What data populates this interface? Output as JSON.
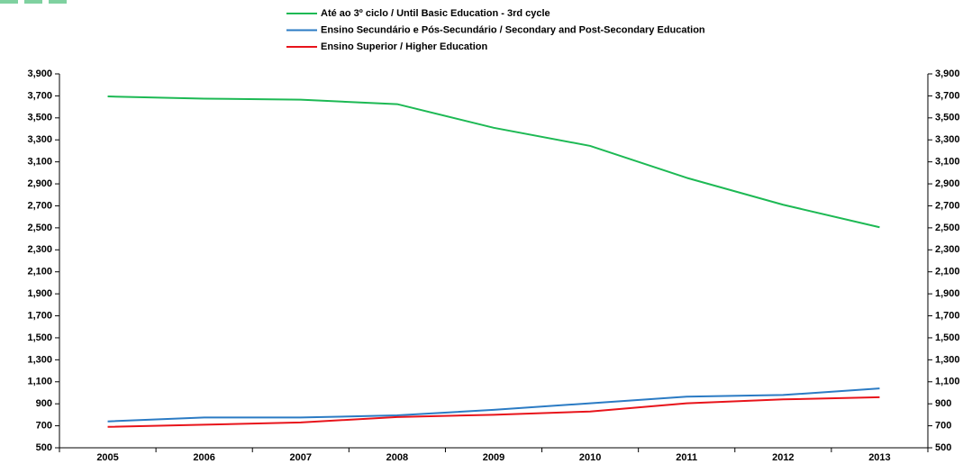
{
  "chart_data": {
    "type": "line",
    "categories": [
      "2005",
      "2006",
      "2007",
      "2008",
      "2009",
      "2010",
      "2011",
      "2012",
      "2013"
    ],
    "series": [
      {
        "name": "Até ao 3º ciclo / Until Basic Education - 3rd cycle",
        "color": "#1db954",
        "values": [
          3695,
          3675,
          3665,
          3625,
          3410,
          3245,
          2955,
          2710,
          2505
        ]
      },
      {
        "name": "Ensino Secundário e Pós-Secundário / Secondary and Post-Secondary Education",
        "color": "#2b7bc4",
        "values": [
          740,
          775,
          775,
          795,
          845,
          905,
          965,
          980,
          1040
        ]
      },
      {
        "name": "Ensino Superior / Higher Education",
        "color": "#e8141b",
        "values": [
          690,
          710,
          730,
          780,
          800,
          830,
          905,
          940,
          960
        ]
      }
    ],
    "ylim": [
      500,
      3900
    ],
    "yticks": [
      500,
      700,
      900,
      {
        "value": 1100,
        "label": "1,100"
      },
      {
        "value": 1300,
        "label": "1,300"
      },
      {
        "value": 1500,
        "label": "1,500"
      },
      {
        "value": 1700,
        "label": "1,700"
      },
      {
        "value": 1900,
        "label": "1,900"
      },
      {
        "value": 2100,
        "label": "2,100"
      },
      {
        "value": 2300,
        "label": "2,300"
      },
      {
        "value": 2500,
        "label": "2,500"
      },
      {
        "value": 2700,
        "label": "2,700"
      },
      {
        "value": 2900,
        "label": "2,900"
      },
      {
        "value": 3100,
        "label": "3,100"
      },
      {
        "value": 3300,
        "label": "3,300"
      },
      {
        "value": 3500,
        "label": "3,500"
      },
      {
        "value": 3700,
        "label": "3,700"
      },
      {
        "value": 3900,
        "label": "3,900"
      }
    ],
    "y2lim": [
      500,
      3900
    ],
    "y2ticks": [
      500,
      700,
      900,
      {
        "value": 1100,
        "label": "1,100"
      },
      {
        "value": 1300,
        "label": "1,300"
      },
      {
        "value": 1500,
        "label": "1,500"
      },
      {
        "value": 1700,
        "label": "1,700"
      },
      {
        "value": 1900,
        "label": "1,900"
      },
      {
        "value": 2100,
        "label": "2,100"
      },
      {
        "value": 2300,
        "label": "2,300"
      },
      {
        "value": 2500,
        "label": "2,500"
      },
      {
        "value": 2700,
        "label": "2,700"
      },
      {
        "value": 2900,
        "label": "2,900"
      },
      {
        "value": 3100,
        "label": "3,100"
      },
      {
        "value": 3300,
        "label": "3,300"
      },
      {
        "value": 3500,
        "label": "3,500"
      },
      {
        "value": 3700,
        "label": "3,700"
      },
      {
        "value": 3900,
        "label": "3,900"
      }
    ],
    "grid": false,
    "legend": "top"
  }
}
